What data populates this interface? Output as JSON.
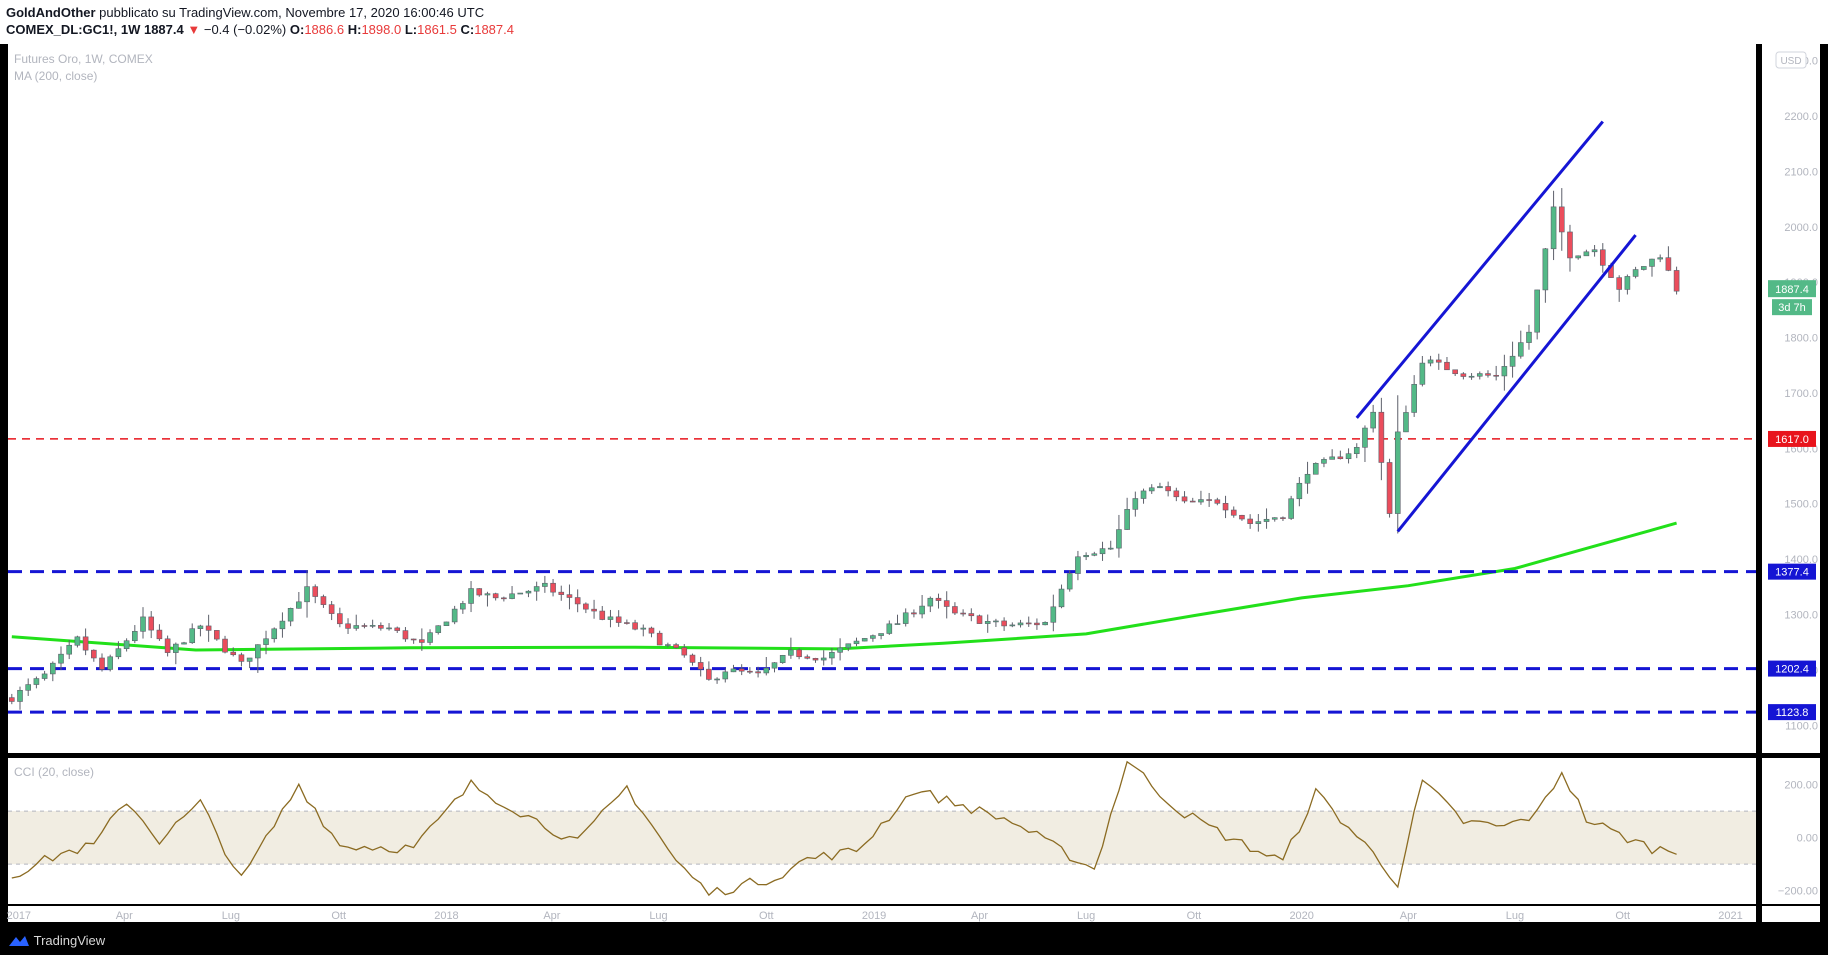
{
  "header": {
    "author": "GoldAndOther",
    "published": "pubblicato su TradingView.com, Novembre 17, 2020 16:00:46 UTC",
    "symbol": "COMEX_DL:GC1!, 1W",
    "last": "1887.4",
    "arrow": "▼",
    "change": "−0.4 (−0.02%)",
    "o_label": "O:",
    "o_value": "1886.6",
    "h_label": "H:",
    "h_value": "1898.0",
    "l_label": "L:",
    "l_value": "1861.5",
    "c_label": "C:",
    "c_value": "1887.4"
  },
  "legend": {
    "title": "Futures Oro, 1W, COMEX",
    "ma": "MA (200, close)",
    "cci": "CCI (20, close)",
    "currency": "USD"
  },
  "footer": {
    "brand": "TradingView",
    "logo_icon": "tradingview-logo-icon"
  },
  "colors": {
    "background": "#000000",
    "up": "#53b987",
    "down": "#eb4d5c",
    "ma": "#22e01a",
    "channel": "#1515d4",
    "support": "#1515d4",
    "resistance": "#e8141c",
    "cci_line": "#8b6b22",
    "cci_band": "#f1ede2",
    "axis_text": "#b2b5be"
  },
  "chart_data": [
    {
      "type": "candlestick",
      "title": "Futures Oro, 1W, COMEX",
      "x_range": [
        "2017-01-01",
        "2021-02-15"
      ],
      "ylim": [
        1050,
        2330
      ],
      "y_ticks": [
        1100,
        1200,
        1300,
        1400,
        1500,
        1600,
        1700,
        1800,
        1900,
        2000,
        2100,
        2200,
        2300
      ],
      "y_tick_labels": [
        "1100.0",
        "1200.0",
        "1300.0",
        "1400.0",
        "1500.0",
        "1600.0",
        "1700.0",
        "1800.0",
        "1900.0",
        "2000.0",
        "2100.0",
        "2200.0",
        "2300.0"
      ],
      "x_ticks": [
        {
          "date": "2017-01-01",
          "label": "2017"
        },
        {
          "date": "2017-04-01",
          "label": "Apr"
        },
        {
          "date": "2017-07-01",
          "label": "Lug"
        },
        {
          "date": "2017-10-01",
          "label": "Ott"
        },
        {
          "date": "2018-01-01",
          "label": "2018"
        },
        {
          "date": "2018-04-01",
          "label": "Apr"
        },
        {
          "date": "2018-07-01",
          "label": "Lug"
        },
        {
          "date": "2018-10-01",
          "label": "Ott"
        },
        {
          "date": "2019-01-01",
          "label": "2019"
        },
        {
          "date": "2019-04-01",
          "label": "Apr"
        },
        {
          "date": "2019-07-01",
          "label": "Lug"
        },
        {
          "date": "2019-10-01",
          "label": "Ott"
        },
        {
          "date": "2020-01-01",
          "label": "2020"
        },
        {
          "date": "2020-04-01",
          "label": "Apr"
        },
        {
          "date": "2020-07-01",
          "label": "Lug"
        },
        {
          "date": "2020-10-01",
          "label": "Ott"
        },
        {
          "date": "2021-01-01",
          "label": "2021"
        }
      ],
      "close_path": [
        [
          "2016-12-26",
          1150
        ],
        [
          "2017-01-23",
          1190
        ],
        [
          "2017-02-20",
          1255
        ],
        [
          "2017-03-13",
          1200
        ],
        [
          "2017-04-17",
          1290
        ],
        [
          "2017-05-08",
          1230
        ],
        [
          "2017-06-05",
          1280
        ],
        [
          "2017-07-10",
          1210
        ],
        [
          "2017-09-04",
          1345
        ],
        [
          "2017-10-02",
          1280
        ],
        [
          "2017-11-13",
          1275
        ],
        [
          "2017-12-11",
          1245
        ],
        [
          "2018-01-22",
          1340
        ],
        [
          "2018-02-12",
          1330
        ],
        [
          "2018-03-26",
          1350
        ],
        [
          "2018-04-23",
          1320
        ],
        [
          "2018-05-14",
          1295
        ],
        [
          "2018-06-18",
          1270
        ],
        [
          "2018-07-23",
          1225
        ],
        [
          "2018-08-13",
          1180
        ],
        [
          "2018-08-27",
          1200
        ],
        [
          "2018-09-24",
          1190
        ],
        [
          "2018-10-22",
          1230
        ],
        [
          "2018-11-19",
          1222
        ],
        [
          "2018-12-17",
          1250
        ],
        [
          "2019-01-21",
          1285
        ],
        [
          "2019-02-18",
          1330
        ],
        [
          "2019-03-11",
          1300
        ],
        [
          "2019-04-22",
          1280
        ],
        [
          "2019-05-27",
          1285
        ],
        [
          "2019-06-24",
          1410
        ],
        [
          "2019-07-22",
          1420
        ],
        [
          "2019-08-12",
          1515
        ],
        [
          "2019-09-02",
          1530
        ],
        [
          "2019-09-23",
          1500
        ],
        [
          "2019-10-21",
          1505
        ],
        [
          "2019-11-18",
          1465
        ],
        [
          "2019-12-16",
          1480
        ],
        [
          "2020-01-06",
          1560
        ],
        [
          "2020-02-17",
          1600
        ],
        [
          "2020-03-02",
          1670
        ],
        [
          "2020-03-16",
          1480
        ],
        [
          "2020-03-23",
          1625
        ],
        [
          "2020-04-13",
          1760
        ],
        [
          "2020-05-18",
          1735
        ],
        [
          "2020-06-15",
          1730
        ],
        [
          "2020-07-13",
          1810
        ],
        [
          "2020-08-03",
          2030
        ],
        [
          "2020-08-17",
          1950
        ],
        [
          "2020-09-07",
          1960
        ],
        [
          "2020-09-28",
          1890
        ],
        [
          "2020-10-12",
          1920
        ],
        [
          "2020-11-02",
          1950
        ],
        [
          "2020-11-16",
          1887.4
        ]
      ],
      "overlays": {
        "ma_200_close": [
          [
            "2016-12-26",
            1260
          ],
          [
            "2017-06-01",
            1236
          ],
          [
            "2017-12-01",
            1240
          ],
          [
            "2018-06-01",
            1241
          ],
          [
            "2018-12-01",
            1238
          ],
          [
            "2019-03-01",
            1248
          ],
          [
            "2019-07-01",
            1265
          ],
          [
            "2019-10-01",
            1298
          ],
          [
            "2020-01-01",
            1330
          ],
          [
            "2020-04-01",
            1352
          ],
          [
            "2020-07-01",
            1383
          ],
          [
            "2020-09-01",
            1420
          ],
          [
            "2020-11-16",
            1465
          ]
        ],
        "horizontal_levels": [
          {
            "value": 1617.0,
            "label": "1617.0",
            "style": "dashed",
            "role": "resistance"
          },
          {
            "value": 1377.4,
            "label": "1377.4",
            "style": "dashed",
            "role": "support"
          },
          {
            "value": 1202.4,
            "label": "1202.4",
            "style": "dashed",
            "role": "support"
          },
          {
            "value": 1123.8,
            "label": "1123.8",
            "style": "dashed",
            "role": "support"
          }
        ],
        "channel_lines": [
          {
            "from": [
              "2020-02-17",
              1655
            ],
            "to": [
              "2020-09-14",
              2190
            ]
          },
          {
            "from": [
              "2020-03-23",
              1450
            ],
            "to": [
              "2020-10-12",
              1985
            ]
          }
        ]
      },
      "last_price_label": "1887.4",
      "countdown_label": "3d 7h"
    },
    {
      "type": "line",
      "title": "CCI (20, close)",
      "ylim": [
        -250,
        300
      ],
      "y_ticks": [
        -200,
        0,
        200
      ],
      "y_tick_labels": [
        "−200.00",
        "0.00",
        "200.00"
      ],
      "band": [
        -100,
        100
      ],
      "x": [
        "2016-12-26",
        "2017-02-06",
        "2017-03-06",
        "2017-04-03",
        "2017-05-01",
        "2017-06-05",
        "2017-07-10",
        "2017-08-28",
        "2017-10-02",
        "2017-12-04",
        "2018-01-22",
        "2018-03-12",
        "2018-04-23",
        "2018-06-04",
        "2018-07-16",
        "2018-08-13",
        "2018-09-10",
        "2018-10-08",
        "2018-11-05",
        "2018-12-17",
        "2019-02-04",
        "2019-03-18",
        "2019-04-29",
        "2019-06-10",
        "2019-07-08",
        "2019-08-05",
        "2019-09-16",
        "2019-11-04",
        "2019-12-16",
        "2020-01-13",
        "2020-03-02",
        "2020-03-23",
        "2020-04-13",
        "2020-05-18",
        "2020-06-22",
        "2020-07-20",
        "2020-08-10",
        "2020-08-31",
        "2020-09-28",
        "2020-10-26",
        "2020-11-16"
      ],
      "values": [
        -140,
        -60,
        -30,
        140,
        -10,
        130,
        -160,
        200,
        -30,
        -40,
        200,
        80,
        -20,
        190,
        -90,
        -210,
        -180,
        -150,
        -80,
        -50,
        180,
        120,
        60,
        -50,
        -120,
        290,
        110,
        -10,
        -90,
        170,
        -60,
        -170,
        210,
        60,
        40,
        90,
        250,
        70,
        10,
        -40,
        -50
      ]
    }
  ]
}
